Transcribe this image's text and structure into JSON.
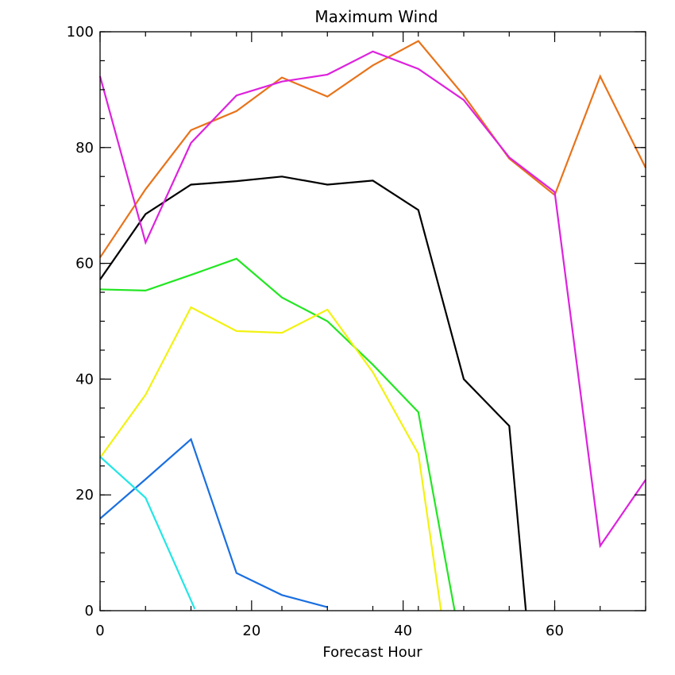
{
  "chart_data": {
    "type": "line",
    "title": "Maximum Wind",
    "xlabel": "Forecast Hour",
    "ylabel": "",
    "xlim": [
      0,
      72
    ],
    "ylim": [
      0,
      100
    ],
    "xticks": [
      0,
      20,
      40,
      60
    ],
    "yticks": [
      0,
      20,
      40,
      60,
      80,
      100
    ],
    "x_minor_step": 6,
    "y_minor_step": 5,
    "grid": false,
    "series": [
      {
        "color": "#000000",
        "x": [
          0,
          6,
          12,
          18,
          24,
          30,
          36,
          42,
          48,
          54,
          56.2
        ],
        "y": [
          57.2,
          68.5,
          73.6,
          74.2,
          75.0,
          73.6,
          74.3,
          69.2,
          40.0,
          31.9,
          0
        ]
      },
      {
        "color": "#e8731a",
        "x": [
          0,
          6,
          12,
          18,
          24,
          30,
          36,
          42,
          48,
          54,
          60,
          66,
          72
        ],
        "y": [
          61.0,
          72.8,
          83.0,
          86.3,
          92.1,
          88.8,
          94.2,
          98.4,
          89.0,
          78.1,
          71.8,
          92.3,
          76.5
        ]
      },
      {
        "color": "#dd22dd",
        "x": [
          0,
          6,
          12,
          18,
          24,
          30,
          36,
          42,
          48,
          54,
          60,
          66,
          72
        ],
        "y": [
          92.3,
          63.6,
          80.8,
          89.0,
          91.4,
          92.6,
          96.6,
          93.6,
          88.2,
          78.3,
          72.3,
          11.2,
          22.6
        ]
      },
      {
        "color": "#22e622",
        "x": [
          0,
          6,
          12,
          18,
          24,
          30,
          36,
          42,
          46.8
        ],
        "y": [
          55.5,
          55.3,
          58.0,
          60.8,
          54.1,
          50.0,
          42.5,
          34.3,
          0
        ]
      },
      {
        "color": "#f2f212",
        "x": [
          0,
          6,
          12,
          18,
          24,
          30,
          36,
          42,
          45.0
        ],
        "y": [
          26.4,
          37.3,
          52.4,
          48.3,
          48.0,
          52.0,
          41.2,
          27.1,
          0
        ]
      },
      {
        "color": "#1a6fe0",
        "x": [
          0,
          6,
          12,
          18,
          24,
          30
        ],
        "y": [
          15.9,
          22.7,
          29.6,
          6.5,
          2.7,
          0.6
        ]
      },
      {
        "color": "#22e6e6",
        "x": [
          0,
          6,
          12.5
        ],
        "y": [
          26.6,
          19.5,
          0.3
        ]
      }
    ]
  }
}
